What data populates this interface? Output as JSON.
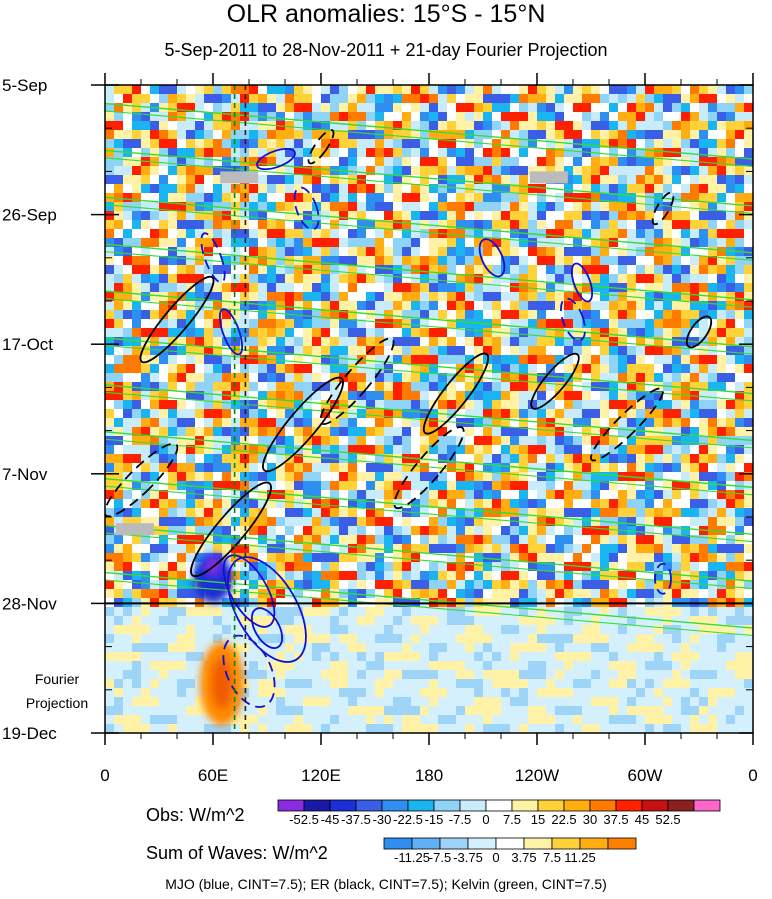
{
  "chart_data": {
    "type": "heatmap",
    "title": "OLR anomalies: 15°S - 15°N",
    "subtitle": "5-Sep-2011 to 28-Nov-2011 + 21-day Fourier Projection",
    "y_ticks": [
      "5-Sep",
      "26-Sep",
      "17-Oct",
      "7-Nov",
      "28-Nov",
      "19-Dec"
    ],
    "x_ticks": [
      "0",
      "60E",
      "120E",
      "180",
      "120W",
      "60W",
      "0"
    ],
    "x_range_deg": [
      0,
      360
    ],
    "y_range_days": [
      0,
      105
    ],
    "projection_start_day": 84,
    "projection_label": [
      "Fourier",
      "Projection"
    ],
    "obs_legend": {
      "label": "Obs: W/m^2",
      "levels": [
        "-52.5",
        "-45",
        "-37.5",
        "-30",
        "-22.5",
        "-15",
        "-7.5",
        "0",
        "7.5",
        "15",
        "22.5",
        "30",
        "37.5",
        "45",
        "52.5"
      ],
      "colors": [
        "#8a2be2",
        "#1a1aa8",
        "#1c2fd6",
        "#3a5fe6",
        "#2f8ff0",
        "#1ab4f0",
        "#8fd3f7",
        "#c8ecfa",
        "#ffffff",
        "#fff2a6",
        "#ffd23a",
        "#ffad10",
        "#ff7a00",
        "#ff2000",
        "#c81010",
        "#8a2020",
        "#ff66cc"
      ]
    },
    "waves_legend": {
      "label": "Sum of Waves: W/m^2",
      "levels": [
        "-11.25",
        "-7.5",
        "-3.75",
        "0",
        "3.75",
        "7.5",
        "11.25"
      ],
      "colors": [
        "#2f8ff0",
        "#5fb0f4",
        "#9ed4f8",
        "#d4f0fc",
        "#ffffff",
        "#fff2a6",
        "#ffd23a",
        "#ffad10",
        "#ff8000"
      ]
    },
    "series": [
      {
        "name": "MJO",
        "color": "blue",
        "cint": 7.5
      },
      {
        "name": "ER",
        "color": "black",
        "cint": 7.5
      },
      {
        "name": "Kelvin",
        "color": "green",
        "cint": 7.5
      }
    ],
    "footer": "MJO (blue, CINT=7.5); ER (black, CINT=7.5); Kelvin (green, CINT=7.5)"
  }
}
